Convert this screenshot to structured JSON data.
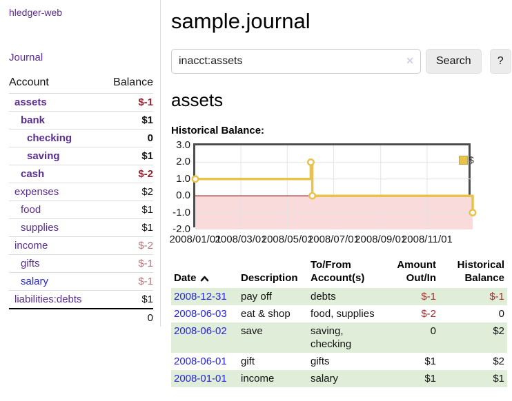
{
  "app": {
    "brand": "hledger-web"
  },
  "sidebar": {
    "journal_link": "Journal",
    "accounts": {
      "col_account": "Account",
      "col_balance": "Balance",
      "rows": [
        {
          "name": "assets",
          "balance": "$-1"
        },
        {
          "name": "bank",
          "balance": "$1"
        },
        {
          "name": "checking",
          "balance": "0"
        },
        {
          "name": "saving",
          "balance": "$1"
        },
        {
          "name": "cash",
          "balance": "$-2"
        },
        {
          "name": "expenses",
          "balance": "$2"
        },
        {
          "name": "food",
          "balance": "$1"
        },
        {
          "name": "supplies",
          "balance": "$1"
        },
        {
          "name": "income",
          "balance": "$-2"
        },
        {
          "name": "gifts",
          "balance": "$-1"
        },
        {
          "name": "salary",
          "balance": "$-1"
        },
        {
          "name": "liabilities:debts",
          "balance": "$1"
        }
      ],
      "total": "0"
    }
  },
  "header": {
    "title": "sample.journal"
  },
  "search": {
    "value": "inacct:assets",
    "clear_icon": "✕",
    "search_button": "Search",
    "help_button": "?"
  },
  "register": {
    "account_heading": "assets",
    "chart_heading": "Historical Balance:",
    "table": {
      "headers": {
        "date": "Date",
        "description": "Description",
        "account": "To/From Account(s)",
        "amount": "Amount Out/In",
        "balance": "Historical Balance"
      },
      "rows": [
        {
          "date": "2008-12-31",
          "description": "pay off",
          "account": "debts",
          "amount": "$-1",
          "balance": "$-1"
        },
        {
          "date": "2008-06-03",
          "description": "eat & shop",
          "account": "food, supplies",
          "amount": "$-2",
          "balance": "0"
        },
        {
          "date": "2008-06-02",
          "description": "save",
          "account": "saving, checking",
          "amount": "0",
          "balance": "$2"
        },
        {
          "date": "2008-06-01",
          "description": "gift",
          "account": "gifts",
          "amount": "$1",
          "balance": "$2"
        },
        {
          "date": "2008-01-01",
          "description": "income",
          "account": "salary",
          "amount": "$1",
          "balance": "$1"
        }
      ]
    }
  },
  "chart_data": {
    "type": "line",
    "step": true,
    "title": "Historical Balance",
    "series": [
      {
        "name": "$",
        "color": "#e8c24a",
        "points": [
          {
            "date": "2008-01-01",
            "day": 0,
            "y": 1
          },
          {
            "date": "2008-06-01",
            "day": 152,
            "y": 2
          },
          {
            "date": "2008-06-03",
            "day": 154,
            "y": 0
          },
          {
            "date": "2008-12-31",
            "day": 365,
            "y": -1
          }
        ]
      }
    ],
    "x_ticks": [
      {
        "label": "2008/01/01",
        "day": 0
      },
      {
        "label": "2008/03/01",
        "day": 60
      },
      {
        "label": "2008/05/01",
        "day": 121
      },
      {
        "label": "2008/07/01",
        "day": 182
      },
      {
        "label": "2008/09/01",
        "day": 244
      },
      {
        "label": "2008/11/01",
        "day": 305
      }
    ],
    "y_ticks": [
      {
        "label": "3.0",
        "v": 3
      },
      {
        "label": "2.0",
        "v": 2
      },
      {
        "label": "1.0",
        "v": 1
      },
      {
        "label": "0.0",
        "v": 0
      },
      {
        "label": "-1.0",
        "v": -1
      },
      {
        "label": "-2.0",
        "v": -2
      }
    ],
    "xlim_days": [
      0,
      365
    ],
    "ylim": [
      -2,
      3
    ],
    "legend": {
      "label": "$",
      "position": "top-right"
    },
    "grid": true,
    "colors": {
      "line": "#e8c24a",
      "marker_fill": "#ffffff",
      "negative_region": "#f9dbdb",
      "zero_line": "#8c0d0d",
      "gridline": "#e4e4e4",
      "border": "#4d4d4d"
    }
  }
}
